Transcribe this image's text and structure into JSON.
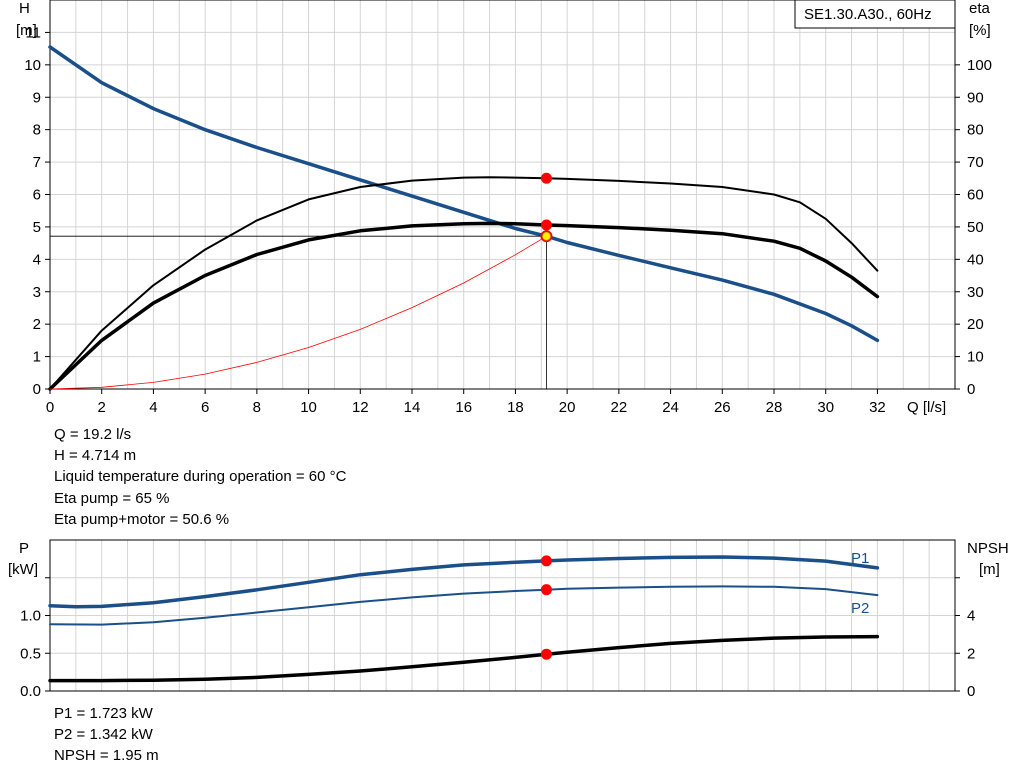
{
  "chart_data": [
    {
      "type": "line",
      "title": "SE1.30.A30., 60Hz",
      "xlabel": "Q [l/s]",
      "ylabel": [
        "H",
        "[m]"
      ],
      "y2label": [
        "eta",
        "[%]"
      ],
      "xlim": [
        0,
        35
      ],
      "ylim": [
        0,
        12
      ],
      "y2lim": [
        0,
        120
      ],
      "x_ticks": [
        0,
        2,
        4,
        6,
        8,
        10,
        12,
        14,
        16,
        18,
        20,
        22,
        24,
        26,
        28,
        30,
        32
      ],
      "y_ticks": [
        0,
        1,
        2,
        3,
        4,
        5,
        6,
        7,
        8,
        9,
        10,
        11
      ],
      "y2_ticks": [
        0,
        10,
        20,
        30,
        40,
        50,
        60,
        70,
        80,
        90,
        100
      ],
      "grid": true,
      "series": [
        {
          "key": "head",
          "axis": "left",
          "color": "#1a4f8a",
          "width": 3.5,
          "x": [
            0,
            2,
            4,
            6,
            8,
            10,
            12,
            14,
            16,
            18,
            19.2,
            20,
            22,
            24,
            26,
            28,
            30,
            31,
            32
          ],
          "y": [
            10.55,
            9.45,
            8.65,
            8.0,
            7.45,
            6.95,
            6.45,
            5.95,
            5.45,
            4.95,
            4.714,
            4.52,
            4.12,
            3.74,
            3.36,
            2.92,
            2.33,
            1.95,
            1.5
          ]
        },
        {
          "key": "eta-pump",
          "axis": "right",
          "color": "#000000",
          "width": 2,
          "x": [
            0,
            2,
            4,
            6,
            8,
            10,
            12,
            14,
            16,
            17,
            18,
            19.2,
            20,
            22,
            24,
            26,
            28,
            29,
            30,
            31,
            32
          ],
          "y": [
            0,
            18,
            32,
            43,
            52,
            58.5,
            62.3,
            64.3,
            65.2,
            65.3,
            65.2,
            65,
            64.8,
            64.2,
            63.4,
            62.3,
            60,
            57.6,
            52.5,
            45,
            36.5
          ]
        },
        {
          "key": "eta-pump-motor",
          "axis": "right",
          "color": "#000000",
          "width": 3.5,
          "x": [
            0,
            2,
            4,
            6,
            8,
            10,
            12,
            14,
            16,
            17,
            18,
            19.2,
            20,
            22,
            24,
            26,
            28,
            29,
            30,
            31,
            32
          ],
          "y": [
            0,
            15,
            26.5,
            35,
            41.5,
            46,
            48.8,
            50.3,
            51,
            51.1,
            51,
            50.6,
            50.4,
            49.8,
            49,
            47.9,
            45.6,
            43.4,
            39.5,
            34.5,
            28.5
          ]
        },
        {
          "key": "system-curve",
          "axis": "left",
          "color": "#ff0000",
          "width": 0.8,
          "x": [
            0,
            2,
            4,
            6,
            8,
            10,
            12,
            14,
            16,
            18,
            19.2
          ],
          "y": [
            0,
            0.051,
            0.205,
            0.46,
            0.82,
            1.28,
            1.84,
            2.51,
            3.27,
            4.14,
            4.714
          ]
        }
      ],
      "operating_point": {
        "x": 19.2,
        "h": 4.714,
        "eta_pump": 65,
        "eta_pump_motor": 50.6
      }
    },
    {
      "type": "line",
      "ylabel": [
        "P",
        "[kW]"
      ],
      "y2label": [
        "NPSH",
        "[m]"
      ],
      "xlim": [
        0,
        35
      ],
      "ylim": [
        0,
        2.0
      ],
      "y2lim": [
        0,
        8
      ],
      "y_ticks": [
        0,
        0.5,
        1.0
      ],
      "y_tick_labels": [
        "0.0",
        "0.5",
        "1.0"
      ],
      "y2_ticks": [
        0,
        2,
        4
      ],
      "grid": true,
      "series": [
        {
          "key": "p1",
          "name": "P1",
          "axis": "left",
          "color": "#1a4f8a",
          "width": 3.5,
          "x": [
            0,
            1,
            2,
            4,
            6,
            8,
            10,
            12,
            14,
            16,
            18,
            19.2,
            20,
            22,
            24,
            26,
            28,
            30,
            32
          ],
          "y": [
            1.13,
            1.115,
            1.12,
            1.17,
            1.25,
            1.34,
            1.44,
            1.54,
            1.61,
            1.67,
            1.705,
            1.723,
            1.735,
            1.755,
            1.77,
            1.775,
            1.76,
            1.72,
            1.63
          ]
        },
        {
          "key": "p2",
          "name": "P2",
          "axis": "left",
          "color": "#1a4f8a",
          "width": 2,
          "x": [
            0,
            2,
            4,
            6,
            8,
            10,
            12,
            14,
            16,
            18,
            19.2,
            20,
            22,
            24,
            26,
            28,
            30,
            32
          ],
          "y": [
            0.885,
            0.88,
            0.91,
            0.97,
            1.04,
            1.11,
            1.18,
            1.24,
            1.29,
            1.325,
            1.342,
            1.355,
            1.37,
            1.38,
            1.385,
            1.38,
            1.35,
            1.27
          ]
        },
        {
          "key": "npsh",
          "axis": "right",
          "color": "#000000",
          "width": 3.5,
          "x": [
            0,
            2,
            4,
            6,
            8,
            10,
            12,
            14,
            16,
            18,
            19.2,
            20,
            22,
            24,
            26,
            28,
            30,
            32
          ],
          "y": [
            0.55,
            0.55,
            0.57,
            0.62,
            0.72,
            0.88,
            1.06,
            1.28,
            1.52,
            1.78,
            1.95,
            2.05,
            2.3,
            2.52,
            2.68,
            2.8,
            2.86,
            2.88
          ]
        }
      ],
      "operating_point": {
        "x": 19.2,
        "p1": 1.723,
        "p2": 1.342,
        "npsh": 1.95
      }
    }
  ],
  "readouts_top": [
    "Q = 19.2 l/s",
    "H = 4.714 m",
    "Liquid temperature during operation = 60 °C",
    "Eta pump = 65 %",
    "Eta pump+motor = 50.6 %"
  ],
  "readouts_bottom": [
    "P1 = 1.723 kW",
    "P2 = 1.342 kW",
    "NPSH = 1.95 m"
  ]
}
